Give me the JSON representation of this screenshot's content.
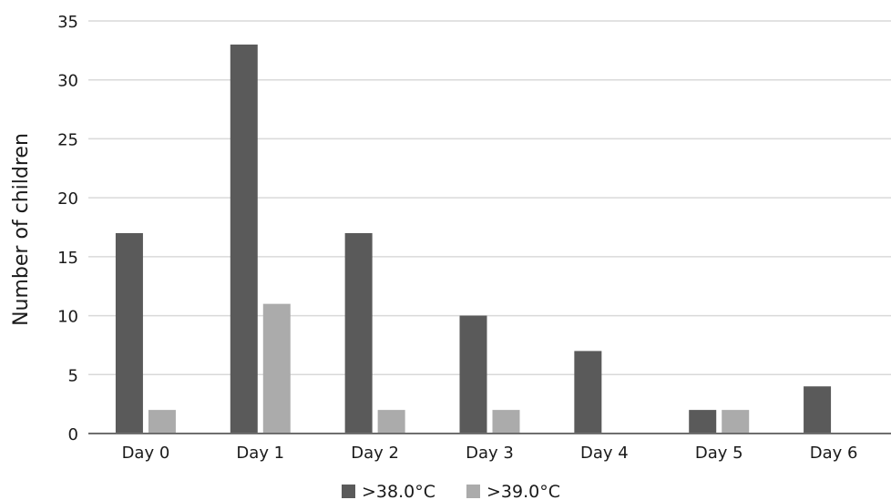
{
  "chart_data": {
    "type": "bar",
    "title": "",
    "xlabel": "",
    "ylabel": "Number of children",
    "ylim": [
      0,
      35
    ],
    "yticks": [
      0,
      5,
      10,
      15,
      20,
      25,
      30,
      35
    ],
    "grid": true,
    "legend_position": "bottom",
    "categories": [
      "Day 0",
      "Day 1",
      "Day 2",
      "Day 3",
      "Day 4",
      "Day 5",
      "Day 6"
    ],
    "series": [
      {
        "name": ">38.0°C",
        "color": "#5a5a5a",
        "values": [
          17,
          33,
          17,
          10,
          7,
          2,
          4
        ]
      },
      {
        "name": ">39.0°C",
        "color": "#ababab",
        "values": [
          2,
          11,
          2,
          2,
          0,
          2,
          0
        ]
      }
    ]
  }
}
